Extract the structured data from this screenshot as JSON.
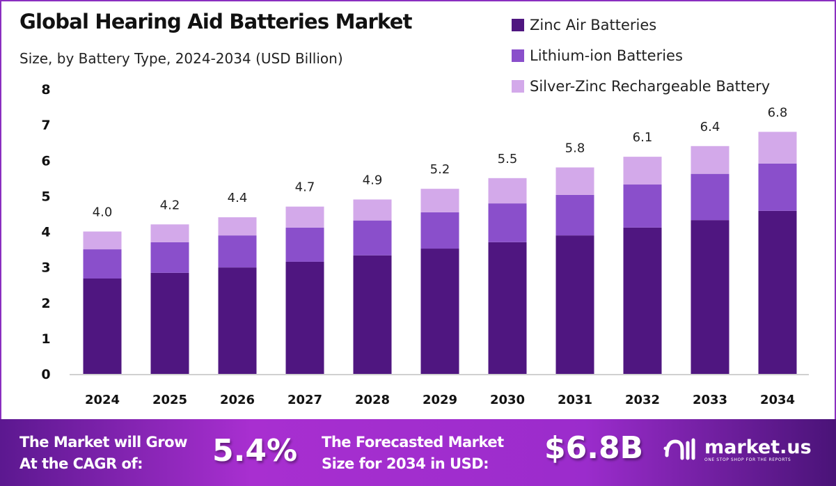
{
  "chart_data": {
    "type": "bar",
    "stacked": true,
    "title": "Global Hearing Aid Batteries Market",
    "subtitle": "Size, by Battery Type, 2024-2034 (USD Billion)",
    "xlabel": "",
    "ylabel": "",
    "ylim": [
      0,
      8
    ],
    "yticks": [
      "0",
      "1",
      "2",
      "3",
      "4",
      "5",
      "6",
      "7",
      "8"
    ],
    "grid": false,
    "legend_position": "top-right",
    "categories": [
      "2024",
      "2025",
      "2026",
      "2027",
      "2028",
      "2029",
      "2030",
      "2031",
      "2032",
      "2033",
      "2034"
    ],
    "series": [
      {
        "name": "Zinc Air Batteries",
        "color": "#4f1680",
        "values": [
          2.68,
          2.84,
          2.99,
          3.15,
          3.33,
          3.52,
          3.7,
          3.89,
          4.11,
          4.32,
          4.58
        ]
      },
      {
        "name": "Lithium-ion Batteries",
        "color": "#8a4fcb",
        "values": [
          0.82,
          0.86,
          0.9,
          0.96,
          0.98,
          1.02,
          1.09,
          1.14,
          1.21,
          1.3,
          1.33
        ]
      },
      {
        "name": "Silver-Zinc Rechargeable Battery",
        "color": "#d3a9ea",
        "values": [
          0.5,
          0.5,
          0.51,
          0.59,
          0.59,
          0.66,
          0.71,
          0.77,
          0.78,
          0.78,
          0.89
        ]
      }
    ],
    "totals": [
      "4.0",
      "4.2",
      "4.4",
      "4.7",
      "4.9",
      "5.2",
      "5.5",
      "5.8",
      "6.1",
      "6.4",
      "6.8"
    ]
  },
  "footer": {
    "cagr_label_line1": "The Market will Grow",
    "cagr_label_line2": "At the CAGR of:",
    "cagr_value": "5.4%",
    "forecast_label_line1": "The Forecasted Market",
    "forecast_label_line2": "Size for 2034 in USD:",
    "forecast_value": "$6.8B",
    "logo_text": "market.us",
    "logo_tagline": "ONE STOP SHOP FOR THE REPORTS"
  }
}
